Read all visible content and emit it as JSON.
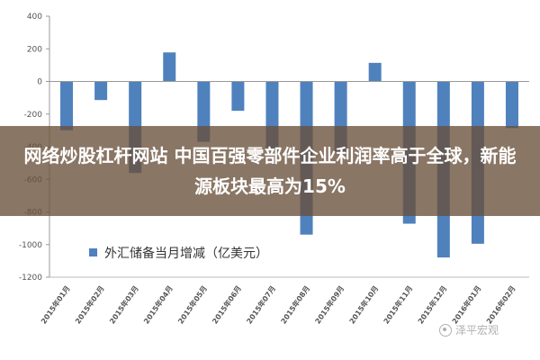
{
  "banner": {
    "headline": "网络炒股杠杆网站 中国百强零部件企业利润率高于全球，新能源板块最高为15%"
  },
  "watermark": {
    "text": "泽平宏观",
    "icon": "wechat-icon"
  },
  "colors": {
    "bar": "#4f81bd",
    "banner": "#69503a",
    "grid": "#d9d9d9"
  },
  "chart_data": {
    "type": "bar",
    "title": "",
    "xlabel": "",
    "ylabel": "",
    "legend_position": "bottom-left",
    "grid": false,
    "ylim": [
      -1200,
      400
    ],
    "yticks": [
      400,
      200,
      0,
      -200,
      -400,
      -600,
      -800,
      -1000,
      -1200
    ],
    "categories": [
      "2015年01月",
      "2015年02月",
      "2015年03月",
      "2015年04月",
      "2015年05月",
      "2015年06月",
      "2015年07月",
      "2015年08月",
      "2015年09月",
      "2015年10月",
      "2015年11月",
      "2015年12月",
      "2016年01月",
      "2016年02月"
    ],
    "series": [
      {
        "name": "外汇储备当月增减（亿美元）",
        "values": [
          -299,
          -114,
          -561,
          178,
          -370,
          -180,
          -424,
          -939,
          -433,
          114,
          -872,
          -1079,
          -995,
          -286
        ]
      }
    ]
  }
}
